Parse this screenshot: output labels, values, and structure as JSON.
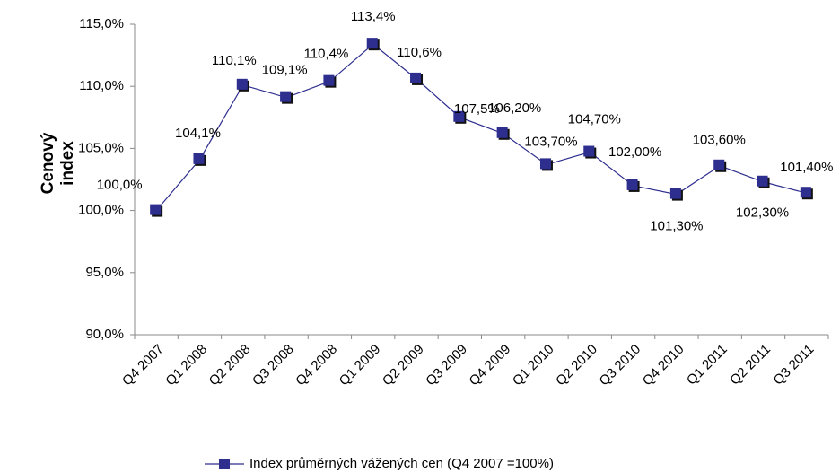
{
  "chart_data": {
    "type": "line",
    "y_label": "Cenový index",
    "categories": [
      "Q4 2007",
      "Q1 2008",
      "Q2 2008",
      "Q3 2008",
      "Q4 2008",
      "Q1 2009",
      "Q2 2009",
      "Q3 2009",
      "Q4 2009",
      "Q1 2010",
      "Q2 2010",
      "Q3 2010",
      "Q4 2010",
      "Q1 2011",
      "Q2 2011",
      "Q3 2011"
    ],
    "series": [
      {
        "name": "Index průměrných vážených cen (Q4 2007 =100%)",
        "color": "#2e2e8f",
        "values": [
          100.0,
          104.1,
          110.1,
          109.1,
          110.4,
          113.4,
          110.6,
          107.5,
          106.2,
          103.7,
          104.7,
          102.0,
          101.3,
          103.6,
          102.3,
          101.4
        ],
        "value_labels": [
          "100,0%",
          "104,1%",
          "110,1%",
          "109,1%",
          "110,4%",
          "113,4%",
          "110,6%",
          "107,5%",
          "106,20%",
          "103,70%",
          "104,70%",
          "102,00%",
          "101,30%",
          "103,60%",
          "102,30%",
          "101,40%"
        ]
      }
    ],
    "ylim": [
      90,
      115
    ],
    "yticks": [
      {
        "value": 90,
        "label": "90,0%"
      },
      {
        "value": 95,
        "label": "95,0%"
      },
      {
        "value": 100,
        "label": "100,0%"
      },
      {
        "value": 105,
        "label": "105,0%"
      },
      {
        "value": 110,
        "label": "110,0%"
      },
      {
        "value": 115,
        "label": "115,0%"
      }
    ],
    "grid": false,
    "legend": "bottom"
  }
}
